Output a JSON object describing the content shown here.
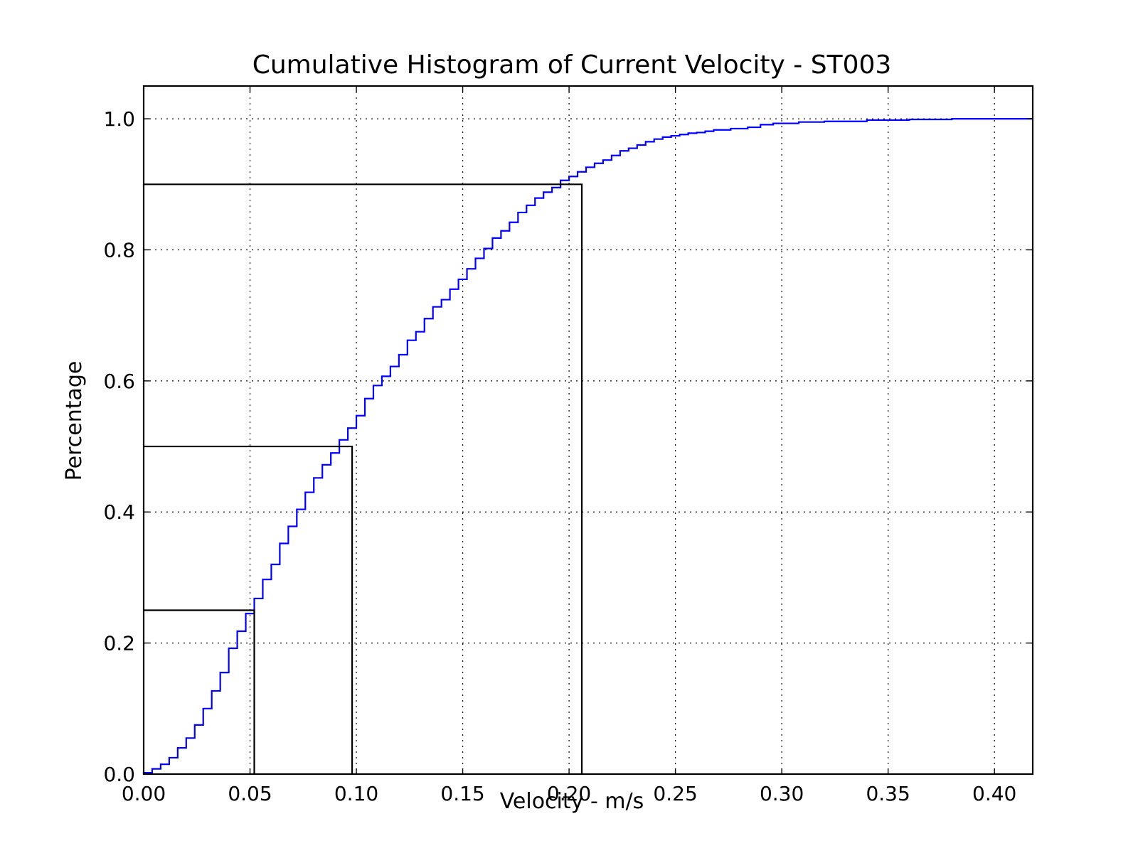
{
  "chart_data": {
    "type": "line",
    "title": "Cumulative Histogram of Current Velocity - ST003",
    "xlabel": "Velocity - m/s",
    "ylabel": "Percentage",
    "xlim": [
      0.0,
      0.418
    ],
    "ylim": [
      0.0,
      1.05
    ],
    "x_ticks": [
      0.0,
      0.05,
      0.1,
      0.15,
      0.2,
      0.25,
      0.3,
      0.35,
      0.4
    ],
    "x_tick_labels": [
      "0.00",
      "0.05",
      "0.10",
      "0.15",
      "0.20",
      "0.25",
      "0.30",
      "0.35",
      "0.40"
    ],
    "y_ticks": [
      0.0,
      0.2,
      0.4,
      0.6,
      0.8,
      1.0
    ],
    "y_tick_labels": [
      "0.0",
      "0.2",
      "0.4",
      "0.6",
      "0.8",
      "1.0"
    ],
    "grid": true,
    "series": [
      {
        "kind": "step",
        "color": "#0000ff",
        "x": [
          0.0,
          0.004,
          0.008,
          0.012,
          0.016,
          0.02,
          0.024,
          0.028,
          0.032,
          0.036,
          0.04,
          0.044,
          0.048,
          0.052,
          0.056,
          0.06,
          0.064,
          0.068,
          0.072,
          0.076,
          0.08,
          0.084,
          0.088,
          0.092,
          0.096,
          0.1,
          0.104,
          0.108,
          0.112,
          0.116,
          0.12,
          0.124,
          0.128,
          0.132,
          0.136,
          0.14,
          0.144,
          0.148,
          0.152,
          0.156,
          0.16,
          0.164,
          0.168,
          0.172,
          0.176,
          0.18,
          0.184,
          0.188,
          0.192,
          0.196,
          0.2,
          0.204,
          0.208,
          0.212,
          0.216,
          0.22,
          0.224,
          0.228,
          0.232,
          0.236,
          0.24,
          0.244,
          0.248,
          0.252,
          0.256,
          0.26,
          0.264,
          0.268,
          0.276,
          0.284,
          0.29,
          0.296,
          0.308,
          0.32,
          0.34,
          0.36,
          0.38,
          0.4,
          0.418
        ],
        "y": [
          0.002,
          0.008,
          0.015,
          0.025,
          0.04,
          0.055,
          0.075,
          0.1,
          0.127,
          0.155,
          0.192,
          0.218,
          0.245,
          0.268,
          0.297,
          0.32,
          0.352,
          0.378,
          0.404,
          0.43,
          0.452,
          0.472,
          0.49,
          0.51,
          0.528,
          0.547,
          0.573,
          0.593,
          0.607,
          0.622,
          0.64,
          0.662,
          0.675,
          0.695,
          0.713,
          0.724,
          0.74,
          0.755,
          0.771,
          0.787,
          0.802,
          0.818,
          0.829,
          0.842,
          0.857,
          0.868,
          0.879,
          0.888,
          0.895,
          0.906,
          0.912,
          0.919,
          0.926,
          0.932,
          0.937,
          0.944,
          0.951,
          0.955,
          0.96,
          0.965,
          0.969,
          0.972,
          0.974,
          0.976,
          0.978,
          0.979,
          0.981,
          0.983,
          0.985,
          0.987,
          0.991,
          0.993,
          0.995,
          0.996,
          0.998,
          0.999,
          1.0,
          1.0,
          1.0
        ]
      }
    ],
    "percentile_markers": [
      {
        "x": 0.052,
        "y": 0.25
      },
      {
        "x": 0.098,
        "y": 0.5
      },
      {
        "x": 0.206,
        "y": 0.9
      }
    ]
  }
}
